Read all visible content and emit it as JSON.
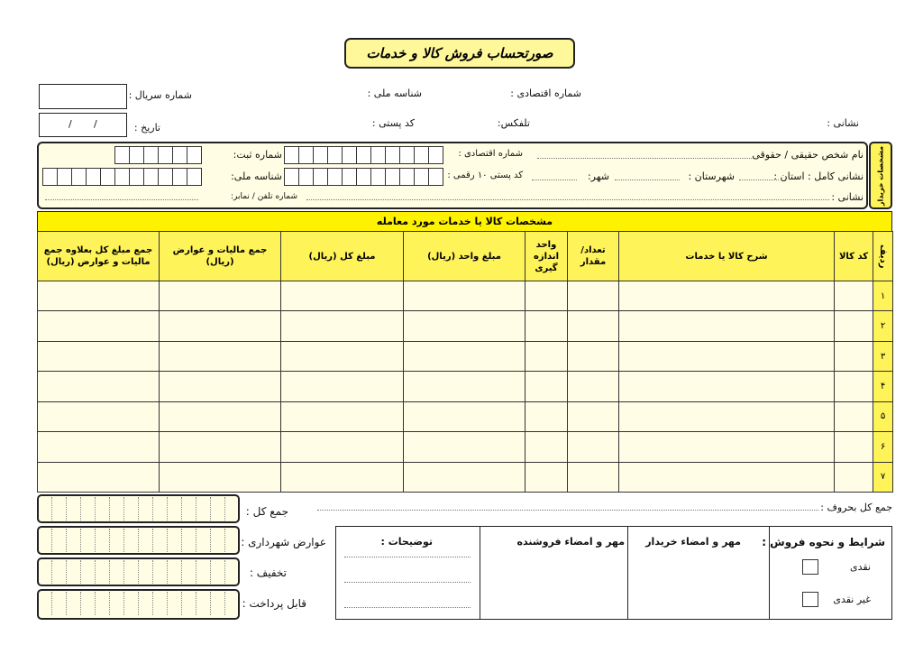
{
  "header": {
    "title": "صورتحساب فروش کالا و خدمات",
    "economic_code": "شماره اقتصادی :",
    "national_id": "شناسه ملی :",
    "serial": "شماره سریال :",
    "address": "نشانی :",
    "telfax": "تلفکس:",
    "postal_code": "کد پستی :",
    "date": "تاریخ :",
    "date_slashes": [
      "/",
      "/"
    ]
  },
  "buyer": {
    "section_label": "مشخصات خریدار",
    "name": "نام شخص حقیقی / حقوقی",
    "economic_code": "شماره اقتصادی :",
    "registration": "شماره ثبت:",
    "province": "نشانی کامل : استان :",
    "county": "شهرستان :",
    "city": "شهر:",
    "postal_code": "کد پستی ۱۰ رقمی :",
    "national_id": "شناسه ملی:",
    "address": "نشانی :",
    "phone": "شماره تلفن / نمابر:"
  },
  "items": {
    "title": "مشخصات کالا یا خدمات مورد معامله",
    "columns": [
      "ردیف",
      "کد کالا",
      "شرح کالا یا خدمات",
      "تعداد/ مقدار",
      "واحد اندازه گیری",
      "مبلغ واحد (ریال)",
      "مبلغ کل (ریال)",
      "جمع مالیات و عوارض (ریال)",
      "جمع مبلغ کل بعلاوه جمع مالیات و عوارض (ریال)"
    ],
    "rows": [
      "۱",
      "۲",
      "۳",
      "۴",
      "۵",
      "۶",
      "۷"
    ]
  },
  "totals": {
    "in_words": "جمع کل بحروف :",
    "total": "جمع کل :",
    "municipal_tax": "عوارض شهرداری :",
    "discount": "تخفیف :",
    "payable": "قابل پرداخت :"
  },
  "footer": {
    "notes": "توضیحات :",
    "seller_sign": "مهر و امضاء فروشنده",
    "buyer_sign": "مهر و امضاء خریدار",
    "terms": "شرایط و نحوه فروش :",
    "cash": "نقدی",
    "non_cash": "غیر نقدی"
  }
}
